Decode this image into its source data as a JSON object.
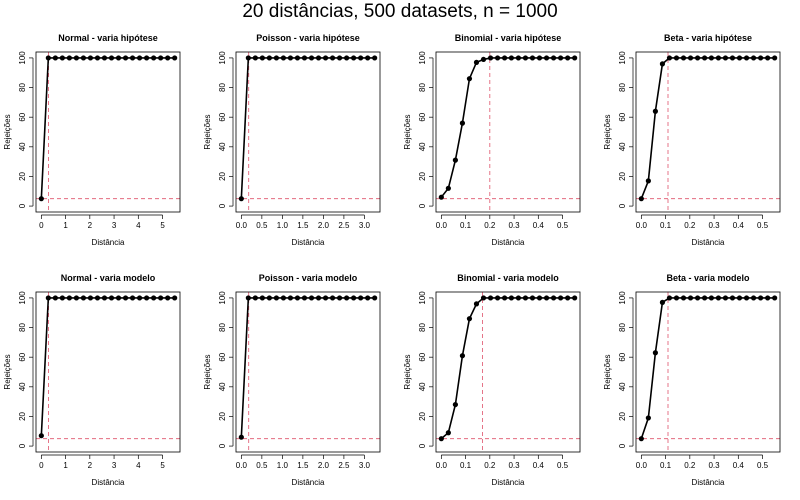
{
  "page_title": "20 distâncias, 500 datasets, n = 1000",
  "colors": {
    "series": "#000000",
    "reference": "#df536b",
    "frame": "#000000"
  },
  "chart_data": [
    {
      "type": "line",
      "title": "Normal - varia hipótese",
      "xlabel": "Distância",
      "ylabel": "Rejeições",
      "xlim": [
        0,
        5.5
      ],
      "ylim": [
        0,
        100
      ],
      "xticks": [
        0,
        1,
        2,
        3,
        4,
        5
      ],
      "yticks": [
        0,
        20,
        40,
        60,
        80,
        100
      ],
      "x": [
        0,
        0.289,
        0.579,
        0.868,
        1.158,
        1.447,
        1.737,
        2.026,
        2.316,
        2.605,
        2.895,
        3.184,
        3.474,
        3.763,
        4.053,
        4.342,
        4.632,
        4.921,
        5.211,
        5.5
      ],
      "y": [
        5,
        100,
        100,
        100,
        100,
        100,
        100,
        100,
        100,
        100,
        100,
        100,
        100,
        100,
        100,
        100,
        100,
        100,
        100,
        100
      ],
      "hline": 5,
      "vline": 0.3
    },
    {
      "type": "line",
      "title": "Poisson - varia hipótese",
      "xlabel": "Distância",
      "ylabel": "Rejeições",
      "xlim": [
        0,
        3.25
      ],
      "ylim": [
        0,
        100
      ],
      "xticks": [
        0,
        0.5,
        1,
        1.5,
        2,
        2.5,
        3
      ],
      "xticklabels": [
        "0.0",
        "0.5",
        "1.0",
        "1.5",
        "2.0",
        "2.5",
        "3.0"
      ],
      "yticks": [
        0,
        20,
        40,
        60,
        80,
        100
      ],
      "x": [
        0,
        0.171,
        0.342,
        0.513,
        0.684,
        0.855,
        1.026,
        1.197,
        1.368,
        1.539,
        1.711,
        1.882,
        2.053,
        2.224,
        2.395,
        2.566,
        2.737,
        2.908,
        3.079,
        3.25
      ],
      "y": [
        5,
        100,
        100,
        100,
        100,
        100,
        100,
        100,
        100,
        100,
        100,
        100,
        100,
        100,
        100,
        100,
        100,
        100,
        100,
        100
      ],
      "hline": 5,
      "vline": 0.18
    },
    {
      "type": "line",
      "title": "Binomial - varia hipótese",
      "xlabel": "Distância",
      "ylabel": "Rejeições",
      "xlim": [
        0,
        0.55
      ],
      "ylim": [
        0,
        100
      ],
      "xticks": [
        0,
        0.1,
        0.2,
        0.3,
        0.4,
        0.5
      ],
      "xticklabels": [
        "0.0",
        "0.1",
        "0.2",
        "0.3",
        "0.4",
        "0.5"
      ],
      "yticks": [
        0,
        20,
        40,
        60,
        80,
        100
      ],
      "x": [
        0,
        0.029,
        0.058,
        0.087,
        0.116,
        0.145,
        0.174,
        0.203,
        0.232,
        0.261,
        0.289,
        0.318,
        0.347,
        0.376,
        0.405,
        0.434,
        0.463,
        0.492,
        0.521,
        0.55
      ],
      "y": [
        6,
        12,
        31,
        56,
        86,
        97,
        99,
        100,
        100,
        100,
        100,
        100,
        100,
        100,
        100,
        100,
        100,
        100,
        100,
        100
      ],
      "hline": 5,
      "vline": 0.2
    },
    {
      "type": "line",
      "title": "Beta - varia hipótese",
      "xlabel": "Distância",
      "ylabel": "Rejeições",
      "xlim": [
        0,
        0.55
      ],
      "ylim": [
        0,
        100
      ],
      "xticks": [
        0,
        0.1,
        0.2,
        0.3,
        0.4,
        0.5
      ],
      "xticklabels": [
        "0.0",
        "0.1",
        "0.2",
        "0.3",
        "0.4",
        "0.5"
      ],
      "yticks": [
        0,
        20,
        40,
        60,
        80,
        100
      ],
      "x": [
        0,
        0.029,
        0.058,
        0.087,
        0.116,
        0.145,
        0.174,
        0.203,
        0.232,
        0.261,
        0.289,
        0.318,
        0.347,
        0.376,
        0.405,
        0.434,
        0.463,
        0.492,
        0.521,
        0.55
      ],
      "y": [
        5,
        17,
        64,
        96,
        100,
        100,
        100,
        100,
        100,
        100,
        100,
        100,
        100,
        100,
        100,
        100,
        100,
        100,
        100,
        100
      ],
      "hline": 5,
      "vline": 0.11
    },
    {
      "type": "line",
      "title": "Normal - varia modelo",
      "xlabel": "Distância",
      "ylabel": "Rejeições",
      "xlim": [
        0,
        5.5
      ],
      "ylim": [
        0,
        100
      ],
      "xticks": [
        0,
        1,
        2,
        3,
        4,
        5
      ],
      "yticks": [
        0,
        20,
        40,
        60,
        80,
        100
      ],
      "x": [
        0,
        0.289,
        0.579,
        0.868,
        1.158,
        1.447,
        1.737,
        2.026,
        2.316,
        2.605,
        2.895,
        3.184,
        3.474,
        3.763,
        4.053,
        4.342,
        4.632,
        4.921,
        5.211,
        5.5
      ],
      "y": [
        7,
        100,
        100,
        100,
        100,
        100,
        100,
        100,
        100,
        100,
        100,
        100,
        100,
        100,
        100,
        100,
        100,
        100,
        100,
        100
      ],
      "hline": 5,
      "vline": 0.3
    },
    {
      "type": "line",
      "title": "Poisson - varia modelo",
      "xlabel": "Distância",
      "ylabel": "Rejeições",
      "xlim": [
        0,
        3.25
      ],
      "ylim": [
        0,
        100
      ],
      "xticks": [
        0,
        0.5,
        1,
        1.5,
        2,
        2.5,
        3
      ],
      "xticklabels": [
        "0.0",
        "0.5",
        "1.0",
        "1.5",
        "2.0",
        "2.5",
        "3.0"
      ],
      "yticks": [
        0,
        20,
        40,
        60,
        80,
        100
      ],
      "x": [
        0,
        0.171,
        0.342,
        0.513,
        0.684,
        0.855,
        1.026,
        1.197,
        1.368,
        1.539,
        1.711,
        1.882,
        2.053,
        2.224,
        2.395,
        2.566,
        2.737,
        2.908,
        3.079,
        3.25
      ],
      "y": [
        6,
        100,
        100,
        100,
        100,
        100,
        100,
        100,
        100,
        100,
        100,
        100,
        100,
        100,
        100,
        100,
        100,
        100,
        100,
        100
      ],
      "hline": 5,
      "vline": 0.18
    },
    {
      "type": "line",
      "title": "Binomial - varia modelo",
      "xlabel": "Distância",
      "ylabel": "Rejeições",
      "xlim": [
        0,
        0.55
      ],
      "ylim": [
        0,
        100
      ],
      "xticks": [
        0,
        0.1,
        0.2,
        0.3,
        0.4,
        0.5
      ],
      "xticklabels": [
        "0.0",
        "0.1",
        "0.2",
        "0.3",
        "0.4",
        "0.5"
      ],
      "yticks": [
        0,
        20,
        40,
        60,
        80,
        100
      ],
      "x": [
        0,
        0.029,
        0.058,
        0.087,
        0.116,
        0.145,
        0.174,
        0.203,
        0.232,
        0.261,
        0.289,
        0.318,
        0.347,
        0.376,
        0.405,
        0.434,
        0.463,
        0.492,
        0.521,
        0.55
      ],
      "y": [
        5,
        9,
        28,
        61,
        86,
        96,
        100,
        100,
        100,
        100,
        100,
        100,
        100,
        100,
        100,
        100,
        100,
        100,
        100,
        100
      ],
      "hline": 5,
      "vline": 0.17
    },
    {
      "type": "line",
      "title": "Beta - varia modelo",
      "xlabel": "Distância",
      "ylabel": "Rejeições",
      "xlim": [
        0,
        0.55
      ],
      "ylim": [
        0,
        100
      ],
      "xticks": [
        0,
        0.1,
        0.2,
        0.3,
        0.4,
        0.5
      ],
      "xticklabels": [
        "0.0",
        "0.1",
        "0.2",
        "0.3",
        "0.4",
        "0.5"
      ],
      "yticks": [
        0,
        20,
        40,
        60,
        80,
        100
      ],
      "x": [
        0,
        0.029,
        0.058,
        0.087,
        0.116,
        0.145,
        0.174,
        0.203,
        0.232,
        0.261,
        0.289,
        0.318,
        0.347,
        0.376,
        0.405,
        0.434,
        0.463,
        0.492,
        0.521,
        0.55
      ],
      "y": [
        5,
        19,
        63,
        97,
        100,
        100,
        100,
        100,
        100,
        100,
        100,
        100,
        100,
        100,
        100,
        100,
        100,
        100,
        100,
        100
      ],
      "hline": 5,
      "vline": 0.11
    }
  ]
}
